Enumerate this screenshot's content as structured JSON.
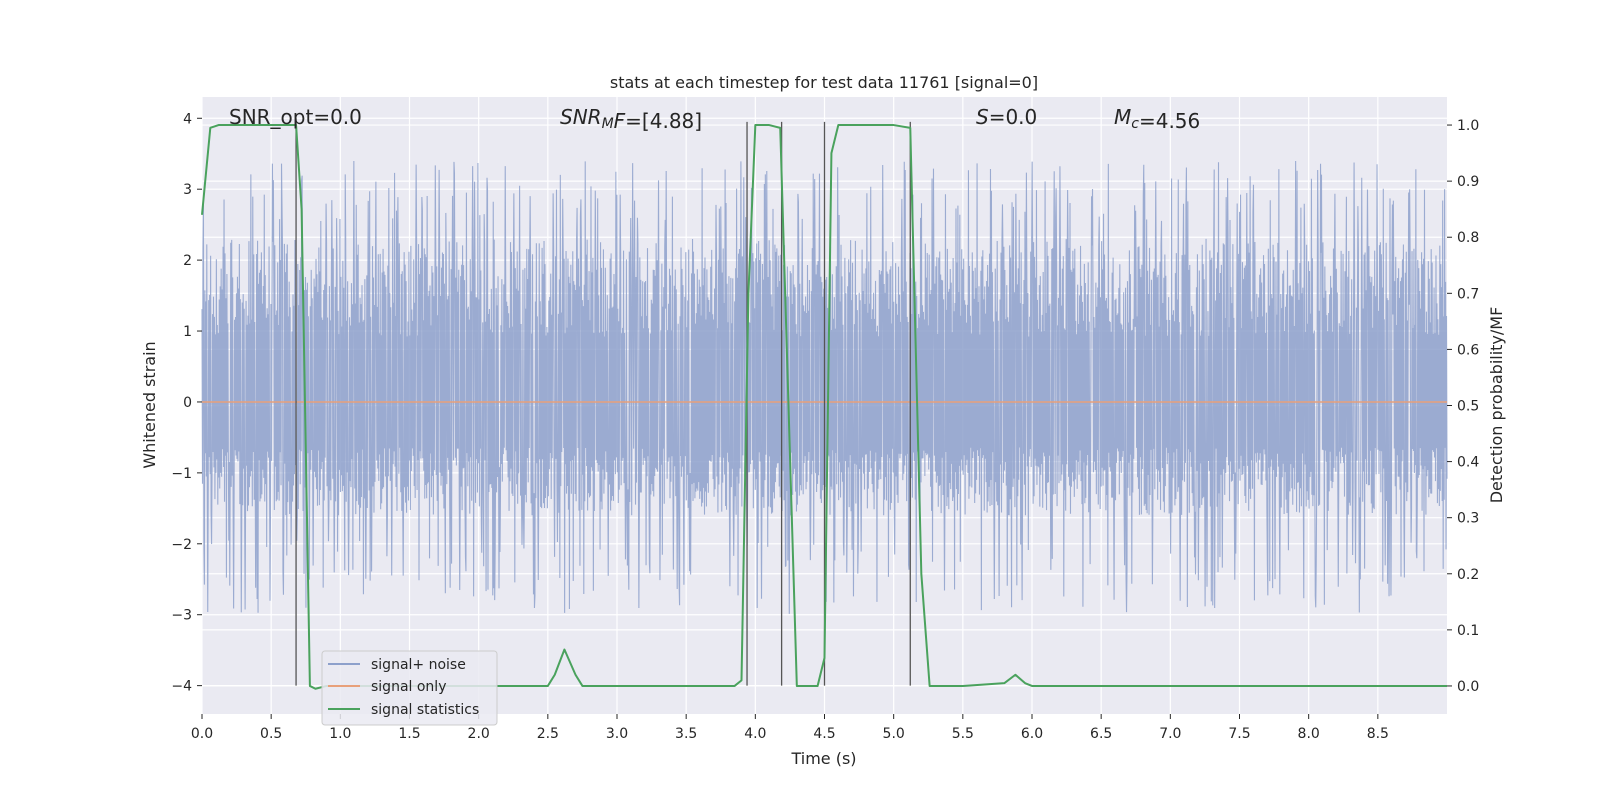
{
  "chart_data": {
    "type": "line",
    "title": "stats at each timestep for test data 11761 [signal=0]",
    "xlabel": "Time (s)",
    "ylabel": "Whitened strain",
    "y2label": "Detection probability/MF",
    "xlim": [
      0.0,
      9.0
    ],
    "ylim": [
      -4.4,
      4.3
    ],
    "y2lim": [
      -0.05,
      1.05
    ],
    "xticks": [
      0.0,
      0.5,
      1.0,
      1.5,
      2.0,
      2.5,
      3.0,
      3.5,
      4.0,
      4.5,
      5.0,
      5.5,
      6.0,
      6.5,
      7.0,
      7.5,
      8.0,
      8.5
    ],
    "xtick_labels": [
      "0.0",
      "0.5",
      "1.0",
      "1.5",
      "2.0",
      "2.5",
      "3.0",
      "3.5",
      "4.0",
      "4.5",
      "5.0",
      "5.5",
      "6.0",
      "6.5",
      "7.0",
      "7.5",
      "8.0",
      "8.5"
    ],
    "yticks": [
      4,
      3,
      2,
      1,
      0,
      -1,
      -2,
      -3,
      -4
    ],
    "ytick_labels": [
      "4",
      "3",
      "2",
      "1",
      "0",
      "−1",
      "−2",
      "−3",
      "−4"
    ],
    "y2ticks": [
      1.0,
      0.9,
      0.8,
      0.7,
      0.6,
      0.5,
      0.4,
      0.3,
      0.2,
      0.1,
      0.0
    ],
    "y2tick_labels": [
      "1.0",
      "0.9",
      "0.8",
      "0.7",
      "0.6",
      "0.5",
      "0.4",
      "0.3",
      "0.2",
      "0.1",
      "0.0"
    ],
    "grid": true,
    "legend": {
      "placement": "lower-left",
      "entries": [
        {
          "label": "signal+ noise",
          "color": "#8da0cb"
        },
        {
          "label": "signal only",
          "color": "#e8a07a"
        },
        {
          "label": "signal statistics",
          "color": "#4aa25d"
        }
      ]
    },
    "noise_series": {
      "name": "signal+ noise",
      "color": "#8da0cb",
      "duration_s": 9.0,
      "dense_band": [
        -1.6,
        2.3
      ],
      "typical_peak_range": [
        -2.6,
        3.4
      ]
    },
    "signal_only": {
      "name": "signal only",
      "color": "#e8a07a",
      "value": 0.0
    },
    "statistics_series": {
      "name": "signal statistics",
      "color": "#4aa25d",
      "axis": "right",
      "x": [
        0.0,
        0.06,
        0.12,
        0.3,
        0.5,
        0.62,
        0.68,
        0.72,
        0.78,
        0.82,
        0.9,
        1.0,
        1.5,
        2.0,
        2.5,
        2.55,
        2.62,
        2.7,
        2.75,
        3.0,
        3.5,
        3.85,
        3.9,
        3.95,
        4.0,
        4.1,
        4.18,
        4.3,
        4.38,
        4.45,
        4.5,
        4.55,
        4.6,
        5.0,
        5.12,
        5.2,
        5.26,
        5.5,
        5.8,
        5.88,
        5.95,
        6.0,
        6.5,
        7.0,
        8.0,
        8.5,
        9.0
      ],
      "y": [
        0.84,
        0.995,
        1.0,
        1.0,
        1.0,
        1.0,
        1.0,
        0.85,
        0.0,
        -0.005,
        0.0,
        0.0,
        0.0,
        0.0,
        0.0,
        0.02,
        0.065,
        0.02,
        0.0,
        0.0,
        0.0,
        0.0,
        0.01,
        0.7,
        1.0,
        1.0,
        0.995,
        0.0,
        0.0,
        0.0,
        0.05,
        0.95,
        1.0,
        1.0,
        0.995,
        0.2,
        0.0,
        0.0,
        0.005,
        0.02,
        0.005,
        0.0,
        0.0,
        0.0,
        0.0,
        0.0,
        0.0
      ]
    },
    "vertical_markers": [
      {
        "x": 0.68,
        "y_top": 4.0,
        "y_bottom": -4.0
      },
      {
        "x": 3.94,
        "y_top": 3.95,
        "y_bottom": -4.0
      },
      {
        "x": 4.19,
        "y_top": 3.95,
        "y_bottom": -4.0
      },
      {
        "x": 4.5,
        "y_top": 3.95,
        "y_bottom": -4.0
      },
      {
        "x": 5.12,
        "y_top": 3.95,
        "y_bottom": -4.0
      }
    ],
    "annotations": [
      {
        "id": "snr-opt",
        "parts": [
          {
            "t": "SNR_opt=0.0",
            "s": "normal"
          }
        ]
      },
      {
        "id": "snr-mf",
        "parts": [
          {
            "t": "SNR",
            "s": "italic"
          },
          {
            "t": "M",
            "s": "italic-sub"
          },
          {
            "t": "F",
            "s": "italic"
          },
          {
            "t": "=[4.88]",
            "s": "normal"
          }
        ]
      },
      {
        "id": "s-stat",
        "parts": [
          {
            "t": "S",
            "s": "italic"
          },
          {
            "t": "=0.0",
            "s": "normal"
          }
        ]
      },
      {
        "id": "mc",
        "parts": [
          {
            "t": "M",
            "s": "italic"
          },
          {
            "t": "c",
            "s": "italic-sub"
          },
          {
            "t": "=4.56",
            "s": "normal"
          }
        ]
      }
    ],
    "colors": {
      "axes_bg": "#eaeaf2",
      "grid": "#ffffff",
      "marker_line": "#555555"
    }
  }
}
